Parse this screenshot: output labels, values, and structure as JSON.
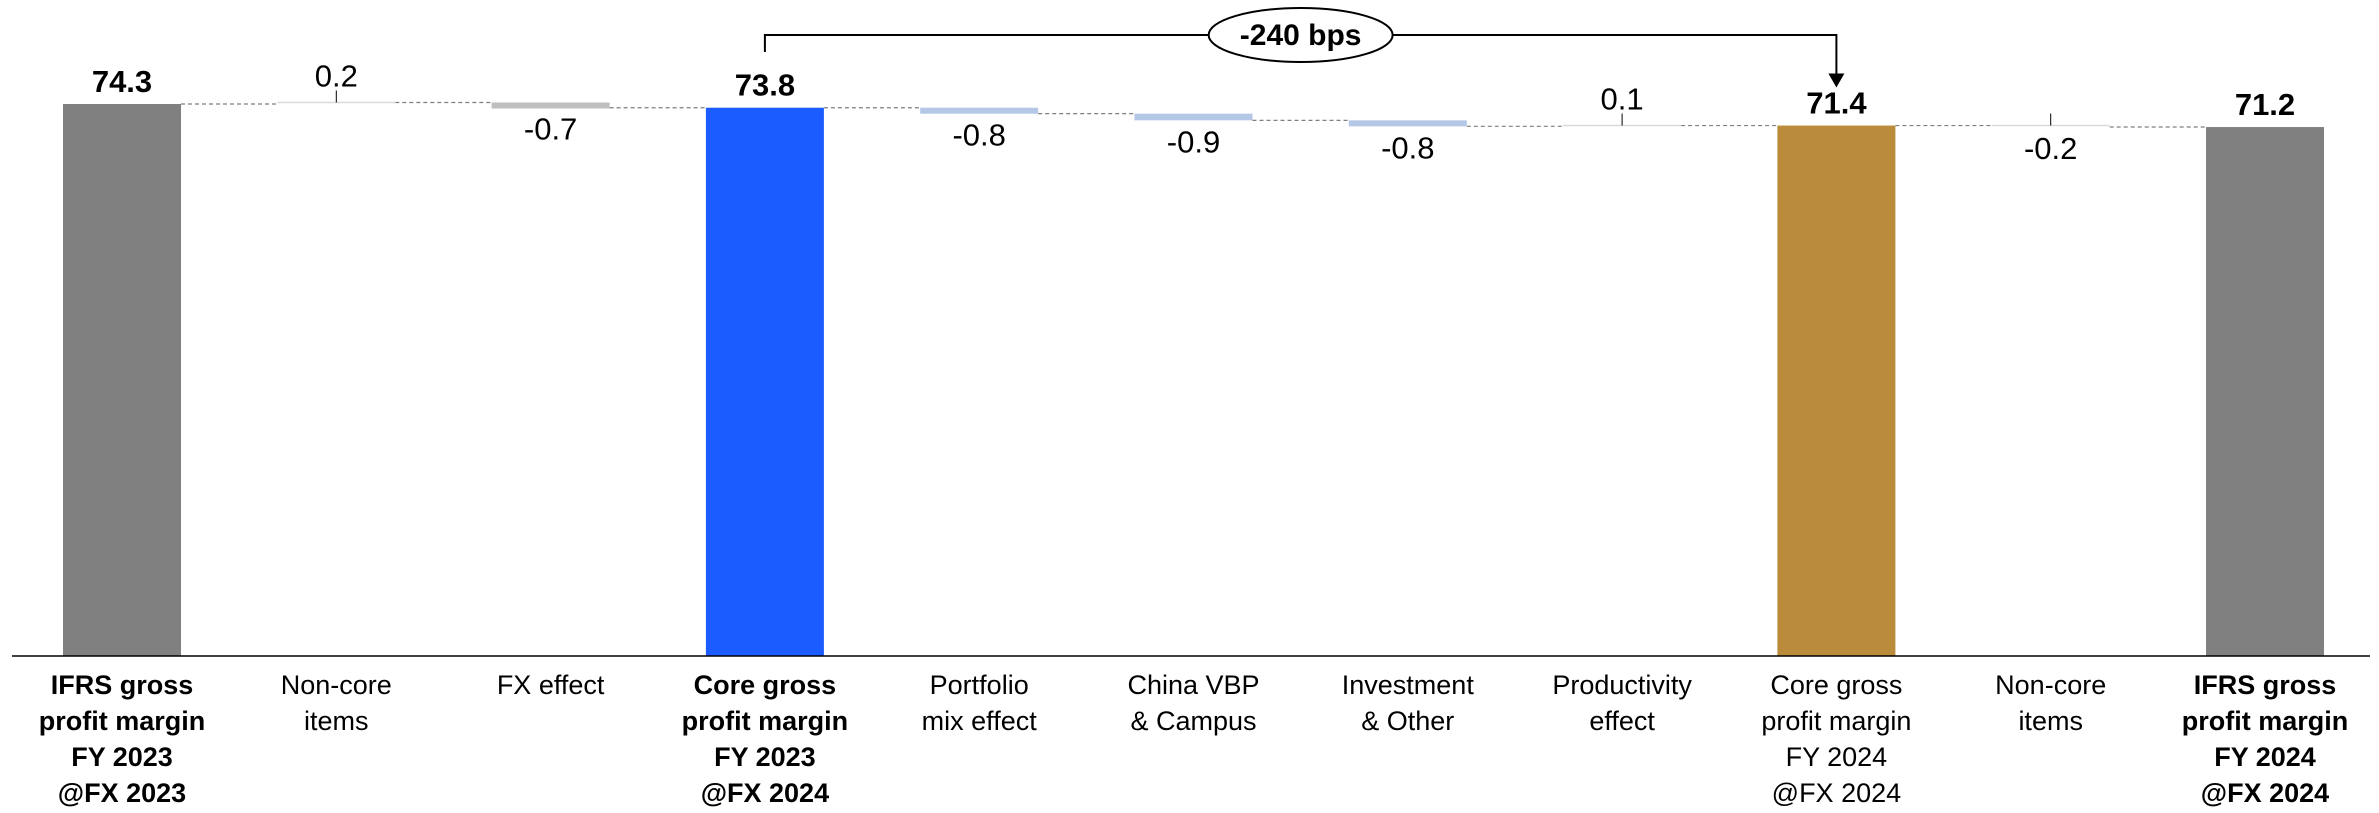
{
  "chart_data": {
    "type": "bar",
    "subtype": "waterfall",
    "categories": [
      [
        "IFRS gross",
        "profit margin",
        "FY 2023",
        "@FX 2023"
      ],
      [
        "Non-core",
        "items"
      ],
      [
        "FX effect"
      ],
      [
        "Core gross",
        "profit margin",
        "FY 2023",
        "@FX 2024"
      ],
      [
        "Portfolio",
        "mix effect"
      ],
      [
        "China VBP",
        "& Campus"
      ],
      [
        "Investment",
        "& Other"
      ],
      [
        "Productivity",
        "effect"
      ],
      [
        "Core gross",
        "profit margin",
        "FY 2024",
        "@FX 2024"
      ],
      [
        "Non-core",
        "items"
      ],
      [
        "IFRS gross",
        "profit margin",
        "FY 2024",
        "@FX 2024"
      ]
    ],
    "values": [
      74.3,
      0.2,
      -0.7,
      73.8,
      -0.8,
      -0.9,
      -0.8,
      0.1,
      71.4,
      -0.2,
      71.2
    ],
    "labels": [
      "74.3",
      "0.2",
      "-0.7",
      "73.8",
      "-0.8",
      "-0.9",
      "-0.8",
      "0.1",
      "71.4",
      "-0.2",
      "71.2"
    ],
    "kinds": [
      "total",
      "delta",
      "delta",
      "total",
      "delta",
      "delta",
      "delta",
      "delta",
      "total",
      "delta",
      "total"
    ],
    "bold_categories": [
      true,
      false,
      false,
      true,
      false,
      false,
      false,
      false,
      false,
      false,
      true
    ],
    "bar_colors": [
      "#808080",
      "#ffffff",
      "#bfbfbf",
      "#1a5cff",
      "#b4c7e7",
      "#b4c7e7",
      "#b4c7e7",
      "#ffffff",
      "#b98b3a",
      "#ffffff",
      "#808080"
    ],
    "ylim": [
      0,
      74.3
    ],
    "grid": false,
    "legend": "none",
    "annotation": {
      "text": "-240 bps",
      "from_index": 3,
      "to_index": 8
    },
    "title": "",
    "xlabel": "",
    "ylabel": ""
  }
}
